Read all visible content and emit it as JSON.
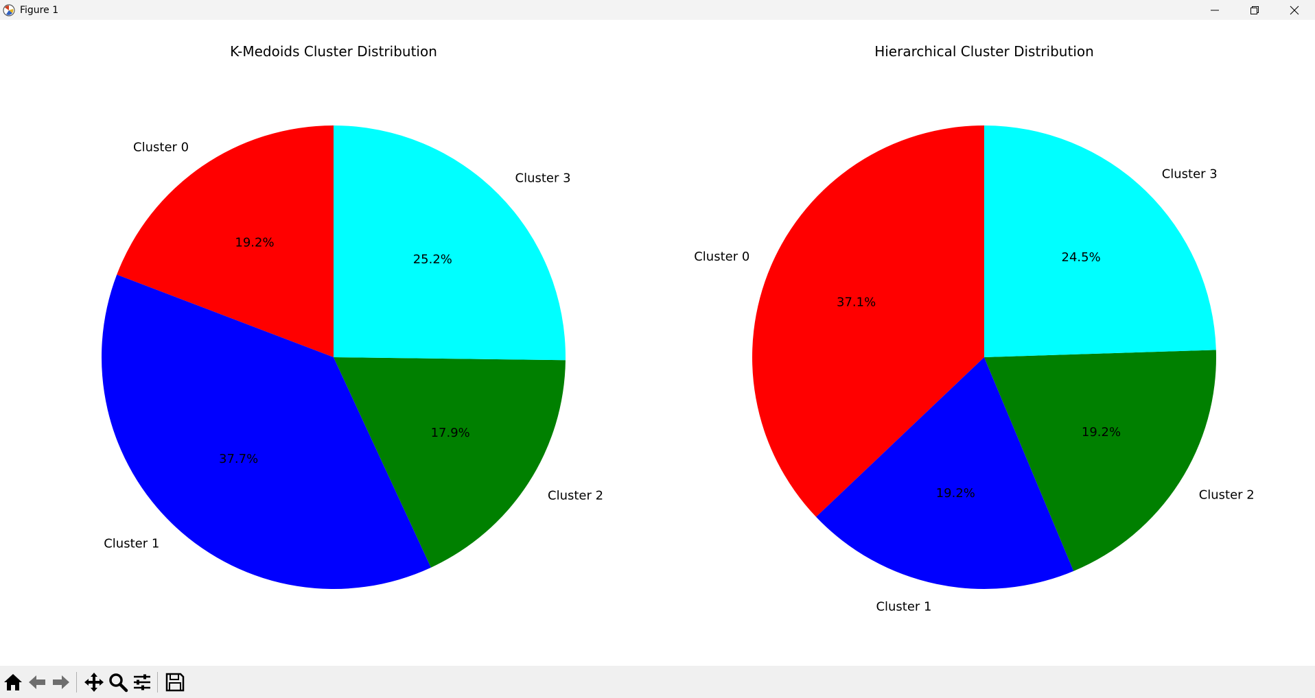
{
  "window": {
    "title": "Figure 1"
  },
  "chart_data": [
    {
      "type": "pie",
      "title": "K-Medoids Cluster Distribution",
      "labels": [
        "Cluster 0",
        "Cluster 1",
        "Cluster 2",
        "Cluster 3"
      ],
      "values": [
        19.2,
        37.7,
        17.9,
        25.2
      ],
      "value_labels": [
        "19.2%",
        "37.7%",
        "17.9%",
        "25.2%"
      ],
      "colors": [
        "#ff0000",
        "#0000ff",
        "#008000",
        "#00ffff"
      ],
      "start_angle_deg": 90,
      "direction": "counterclockwise"
    },
    {
      "type": "pie",
      "title": "Hierarchical Cluster Distribution",
      "labels": [
        "Cluster 0",
        "Cluster 1",
        "Cluster 2",
        "Cluster 3"
      ],
      "values": [
        37.1,
        19.2,
        19.2,
        24.5
      ],
      "value_labels": [
        "37.1%",
        "19.2%",
        "19.2%",
        "24.5%"
      ],
      "colors": [
        "#ff0000",
        "#0000ff",
        "#008000",
        "#00ffff"
      ],
      "start_angle_deg": 90,
      "direction": "counterclockwise"
    }
  ],
  "toolbar": {
    "buttons": [
      "home-icon",
      "back-arrow-icon",
      "forward-arrow-icon",
      "pan-icon",
      "zoom-icon",
      "configure-subplots-icon",
      "save-icon"
    ]
  }
}
